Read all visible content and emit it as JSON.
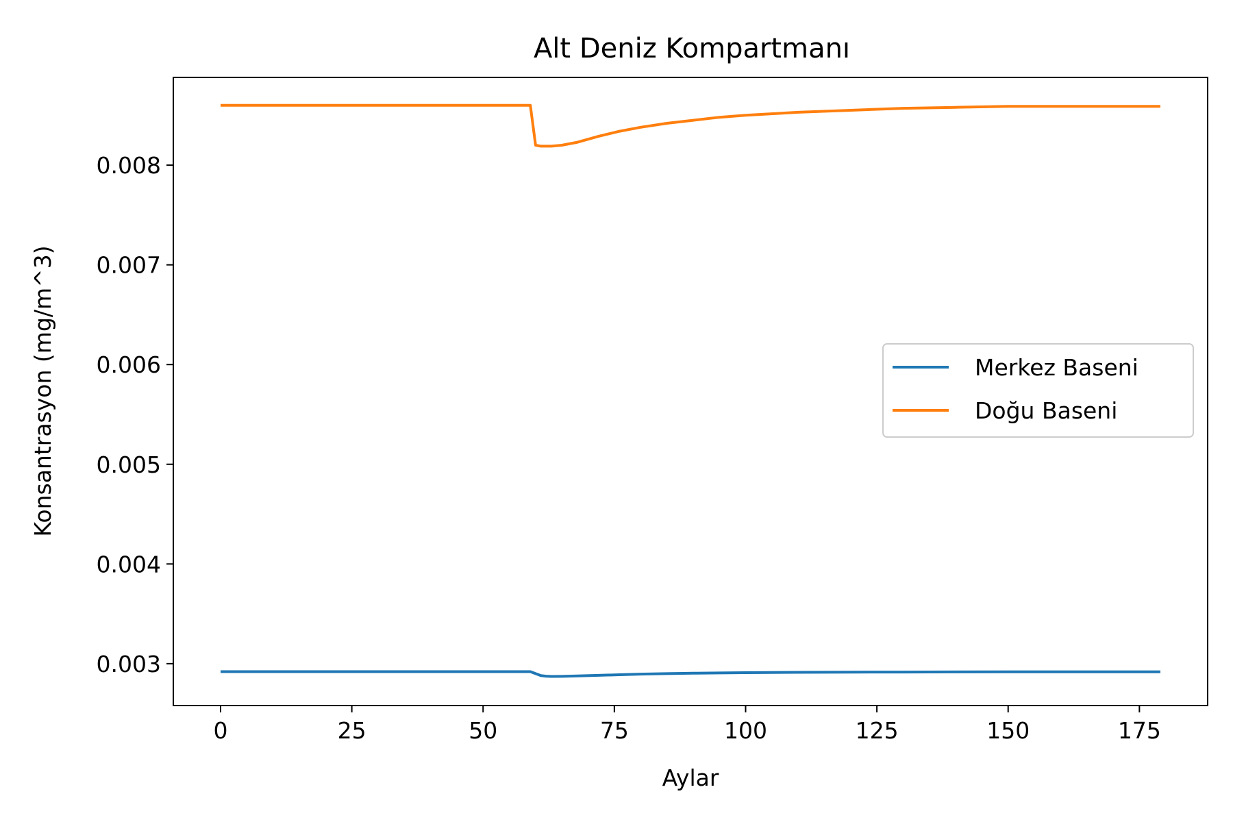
{
  "chart_data": {
    "type": "line",
    "title": "Alt Deniz Kompartmanı",
    "xlabel": "Aylar",
    "ylabel": "Konsantrasyon (mg/m^3)",
    "xlim": [
      -9,
      188
    ],
    "ylim": [
      0.00258,
      0.00888
    ],
    "xticks": [
      0,
      25,
      50,
      75,
      100,
      125,
      150,
      175
    ],
    "xtick_labels": [
      "0",
      "25",
      "50",
      "75",
      "100",
      "125",
      "150",
      "175"
    ],
    "yticks": [
      0.003,
      0.004,
      0.005,
      0.006,
      0.007,
      0.008
    ],
    "ytick_labels": [
      "0.003",
      "0.004",
      "0.005",
      "0.006",
      "0.007",
      "0.008"
    ],
    "grid": false,
    "legend_position": "center-right",
    "series": [
      {
        "name": "Merkez Baseni",
        "color": "#1f77b4",
        "x": [
          0,
          10,
          20,
          30,
          40,
          50,
          59,
          60,
          61,
          62,
          63,
          65,
          68,
          72,
          76,
          80,
          85,
          90,
          95,
          100,
          110,
          120,
          130,
          140,
          150,
          160,
          170,
          179
        ],
        "y": [
          0.00292,
          0.00292,
          0.00292,
          0.00292,
          0.00292,
          0.00292,
          0.00292,
          0.0029,
          0.00288,
          0.002875,
          0.002872,
          0.002873,
          0.002877,
          0.002883,
          0.002889,
          0.002895,
          0.0029,
          0.002904,
          0.002907,
          0.00291,
          0.002913,
          0.002915,
          0.002916,
          0.002917,
          0.002918,
          0.002918,
          0.002919,
          0.002919
        ]
      },
      {
        "name": "Doğu Baseni",
        "color": "#ff7f0e",
        "x": [
          0,
          10,
          20,
          30,
          40,
          50,
          59,
          60,
          61,
          62,
          63,
          65,
          68,
          72,
          76,
          80,
          85,
          90,
          95,
          100,
          110,
          120,
          130,
          140,
          150,
          160,
          170,
          179
        ],
        "y": [
          0.0086,
          0.0086,
          0.0086,
          0.0086,
          0.0086,
          0.0086,
          0.0086,
          0.0082,
          0.00819,
          0.00819,
          0.00819,
          0.0082,
          0.00823,
          0.00829,
          0.00834,
          0.00838,
          0.00842,
          0.00845,
          0.00848,
          0.0085,
          0.00853,
          0.00855,
          0.00857,
          0.00858,
          0.00859,
          0.00859,
          0.00859,
          0.00859
        ]
      }
    ]
  }
}
